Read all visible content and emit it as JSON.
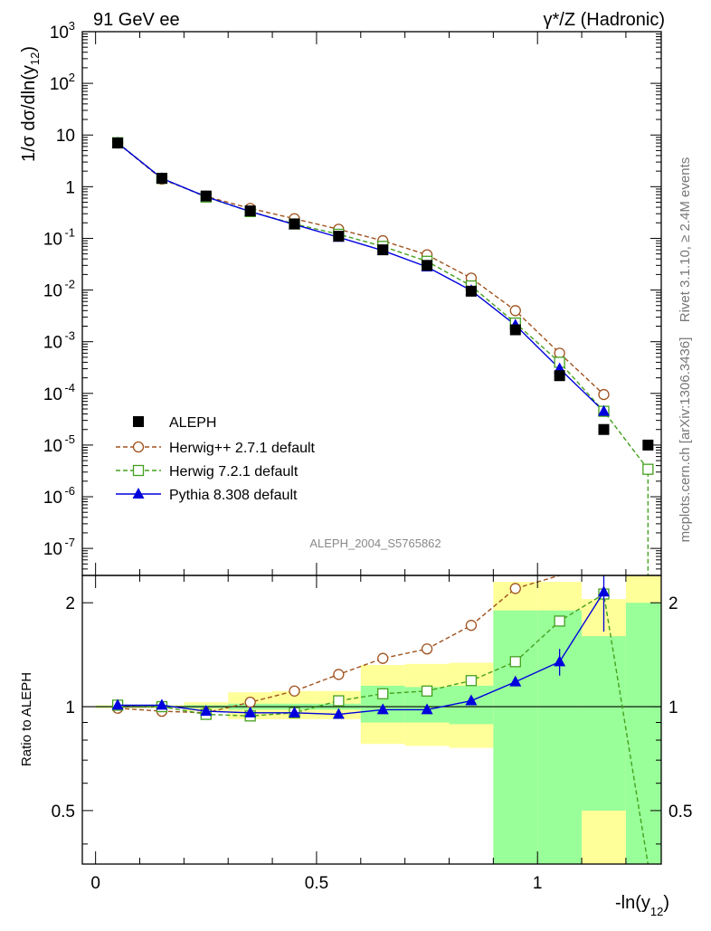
{
  "header": {
    "left": "91 GeV ee",
    "right": "γ*/Z (Hadronic)"
  },
  "side": {
    "rivet": "Rivet 3.1.10, ≥ 2.4M events",
    "mcplots": "mcplots.cern.ch [arXiv:1306.3436]"
  },
  "watermark": "ALEPH_2004_S5765862",
  "colors": {
    "data": "#000000",
    "herwigpp": "#a0521e",
    "herwig7": "#44a01e",
    "pythia": "#0000dd",
    "band_yellow": "#ffff99",
    "band_green": "#99ff99"
  },
  "chart_data": [
    {
      "type": "scatter",
      "panel": "main",
      "xlabel": "-ln(y12)",
      "ylabel": "1/σ dσ/dln(y12)",
      "xlim": [
        -0.03,
        1.28
      ],
      "ylim": [
        3e-08,
        1000
      ],
      "log_y": true,
      "y_ticks": [
        "10^-7",
        "10^-6",
        "10^-5",
        "10^-4",
        "10^-3",
        "10^-2",
        "10^-1",
        "1",
        "10",
        "10^2",
        "10^3"
      ],
      "legend_position": "bottom-left",
      "x": [
        0.05,
        0.15,
        0.25,
        0.35,
        0.45,
        0.55,
        0.65,
        0.75,
        0.85,
        0.95,
        1.05,
        1.15,
        1.25
      ],
      "series": [
        {
          "name": "ALEPH",
          "marker": "filled-square",
          "values": [
            7.0,
            1.45,
            0.66,
            0.34,
            0.19,
            0.11,
            0.06,
            0.03,
            0.0095,
            0.0017,
            0.00022,
            2e-05,
            1e-05
          ]
        },
        {
          "name": "Herwig++ 2.7.1 default",
          "marker": "open-circle",
          "line": "dashed",
          "values": [
            7.0,
            1.4,
            0.65,
            0.38,
            0.24,
            0.15,
            0.09,
            0.048,
            0.017,
            0.004,
            0.0006,
            9.5e-05,
            null
          ]
        },
        {
          "name": "Herwig 7.2.1 default",
          "marker": "open-square",
          "line": "dashed",
          "values": [
            7.1,
            1.45,
            0.63,
            0.33,
            0.19,
            0.12,
            0.07,
            0.036,
            0.012,
            0.0023,
            0.0004,
            4.5e-05,
            3.4e-06
          ]
        },
        {
          "name": "Pythia 8.308 default",
          "marker": "filled-triangle",
          "line": "solid",
          "values": [
            7.0,
            1.45,
            0.64,
            0.33,
            0.185,
            0.105,
            0.058,
            0.028,
            0.0098,
            0.0021,
            0.0003,
            4.5e-05,
            null
          ]
        }
      ]
    },
    {
      "type": "line",
      "panel": "ratio",
      "ylabel": "Ratio to ALEPH",
      "xlabel": "-ln(y12)",
      "xlim": [
        -0.03,
        1.28
      ],
      "ylim": [
        0.35,
        2.4
      ],
      "log_y": true,
      "x_ticks": [
        "0",
        "0.5",
        "1"
      ],
      "y_ticks": [
        "0.5",
        "1",
        "2"
      ],
      "bands": [
        {
          "x": [
            0.0,
            0.1
          ],
          "yellow": [
            0.99,
            1.01
          ],
          "green": [
            0.995,
            1.005
          ]
        },
        {
          "x": [
            0.1,
            0.2
          ],
          "yellow": [
            0.99,
            1.01
          ],
          "green": [
            0.995,
            1.005
          ]
        },
        {
          "x": [
            0.2,
            0.3
          ],
          "yellow": [
            0.97,
            1.03
          ],
          "green": [
            0.99,
            1.01
          ]
        },
        {
          "x": [
            0.3,
            0.4
          ],
          "yellow": [
            0.92,
            1.1
          ],
          "green": [
            0.98,
            1.02
          ]
        },
        {
          "x": [
            0.4,
            0.5
          ],
          "yellow": [
            0.92,
            1.11
          ],
          "green": [
            0.98,
            1.02
          ]
        },
        {
          "x": [
            0.5,
            0.6
          ],
          "yellow": [
            0.92,
            1.11
          ],
          "green": [
            0.98,
            1.02
          ]
        },
        {
          "x": [
            0.6,
            0.7
          ],
          "yellow": [
            0.78,
            1.32
          ],
          "green": [
            0.9,
            1.15
          ]
        },
        {
          "x": [
            0.7,
            0.8
          ],
          "yellow": [
            0.77,
            1.33
          ],
          "green": [
            0.9,
            1.14
          ]
        },
        {
          "x": [
            0.8,
            0.9
          ],
          "yellow": [
            0.76,
            1.34
          ],
          "green": [
            0.89,
            1.15
          ]
        },
        {
          "x": [
            0.9,
            1.0
          ],
          "yellow": [
            0.35,
            2.3
          ],
          "green": [
            0.35,
            1.9
          ]
        },
        {
          "x": [
            1.0,
            1.1
          ],
          "yellow": [
            0.35,
            2.3
          ],
          "green": [
            0.35,
            1.9
          ]
        },
        {
          "x": [
            1.1,
            1.2
          ],
          "yellow": [
            0.35,
            2.05
          ],
          "green": [
            0.5,
            1.6
          ]
        },
        {
          "x": [
            1.2,
            1.28
          ],
          "yellow": [
            0.35,
            2.4
          ],
          "green": [
            0.35,
            2.0
          ]
        }
      ],
      "x": [
        0.05,
        0.15,
        0.25,
        0.35,
        0.45,
        0.55,
        0.65,
        0.75,
        0.85,
        0.95,
        1.05,
        1.15,
        1.25
      ],
      "series": [
        {
          "name": "Herwig++ 2.7.1 default",
          "marker": "open-circle",
          "line": "dashed",
          "values": [
            0.99,
            0.97,
            0.96,
            1.03,
            1.11,
            1.24,
            1.38,
            1.47,
            1.72,
            2.2,
            2.5,
            null,
            null
          ]
        },
        {
          "name": "Herwig 7.2.1 default",
          "marker": "open-square",
          "line": "dashed",
          "values": [
            1.01,
            1.0,
            0.95,
            0.94,
            0.96,
            1.04,
            1.09,
            1.11,
            1.19,
            1.35,
            1.77,
            2.12,
            0.34
          ]
        },
        {
          "name": "Pythia 8.308 default",
          "marker": "filled-triangle",
          "line": "solid",
          "values": [
            1.01,
            1.01,
            0.97,
            0.96,
            0.96,
            0.95,
            0.98,
            0.98,
            1.04,
            1.18,
            1.35,
            2.15,
            null
          ],
          "errors": [
            0,
            0,
            0,
            0,
            0,
            0,
            0,
            0,
            0,
            0.03,
            0.12,
            0.5,
            0
          ]
        }
      ]
    }
  ]
}
